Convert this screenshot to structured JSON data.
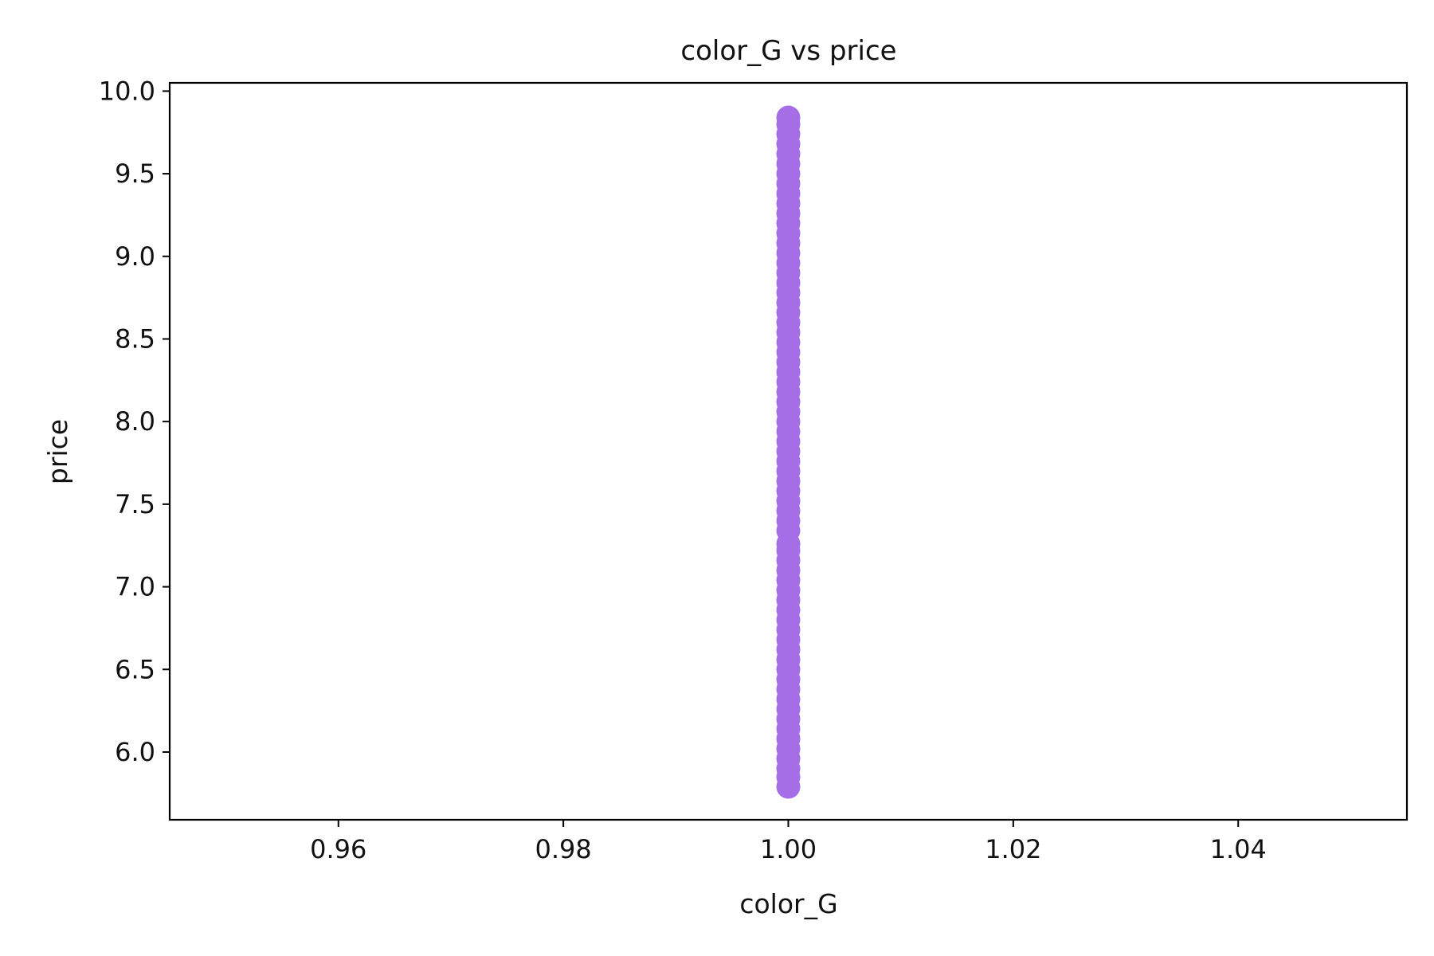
{
  "chart_data": {
    "type": "scatter",
    "title": "color_G vs price",
    "xlabel": "color_G",
    "ylabel": "price",
    "xlim": [
      0.945,
      1.055
    ],
    "ylim": [
      5.59,
      10.05
    ],
    "xticks": [
      0.96,
      0.98,
      1.0,
      1.02,
      1.04
    ],
    "xtick_labels": [
      "0.96",
      "0.98",
      "1.00",
      "1.02",
      "1.04"
    ],
    "yticks": [
      6.0,
      6.5,
      7.0,
      7.5,
      8.0,
      8.5,
      9.0,
      9.5,
      10.0
    ],
    "ytick_labels": [
      "6.0",
      "6.5",
      "7.0",
      "7.5",
      "8.0",
      "8.5",
      "9.0",
      "9.5",
      "10.0"
    ],
    "grid": false,
    "legend": "none",
    "series": [
      {
        "color": "#a56de6",
        "points": [
          {
            "x": 1.0,
            "y": 5.79
          },
          {
            "x": 1.0,
            "y": 5.85
          },
          {
            "x": 1.0,
            "y": 5.9
          },
          {
            "x": 1.0,
            "y": 5.96
          },
          {
            "x": 1.0,
            "y": 6.02
          },
          {
            "x": 1.0,
            "y": 6.08
          },
          {
            "x": 1.0,
            "y": 6.14
          },
          {
            "x": 1.0,
            "y": 6.2
          },
          {
            "x": 1.0,
            "y": 6.26
          },
          {
            "x": 1.0,
            "y": 6.32
          },
          {
            "x": 1.0,
            "y": 6.38
          },
          {
            "x": 1.0,
            "y": 6.44
          },
          {
            "x": 1.0,
            "y": 6.5
          },
          {
            "x": 1.0,
            "y": 6.56
          },
          {
            "x": 1.0,
            "y": 6.62
          },
          {
            "x": 1.0,
            "y": 6.68
          },
          {
            "x": 1.0,
            "y": 6.74
          },
          {
            "x": 1.0,
            "y": 6.8
          },
          {
            "x": 1.0,
            "y": 6.86
          },
          {
            "x": 1.0,
            "y": 6.92
          },
          {
            "x": 1.0,
            "y": 6.98
          },
          {
            "x": 1.0,
            "y": 7.04
          },
          {
            "x": 1.0,
            "y": 7.1
          },
          {
            "x": 1.0,
            "y": 7.16
          },
          {
            "x": 1.0,
            "y": 7.22
          },
          {
            "x": 1.0,
            "y": 7.26
          },
          {
            "x": 1.0,
            "y": 7.34
          },
          {
            "x": 1.0,
            "y": 7.4
          },
          {
            "x": 1.0,
            "y": 7.46
          },
          {
            "x": 1.0,
            "y": 7.52
          },
          {
            "x": 1.0,
            "y": 7.58
          },
          {
            "x": 1.0,
            "y": 7.64
          },
          {
            "x": 1.0,
            "y": 7.7
          },
          {
            "x": 1.0,
            "y": 7.76
          },
          {
            "x": 1.0,
            "y": 7.82
          },
          {
            "x": 1.0,
            "y": 7.88
          },
          {
            "x": 1.0,
            "y": 7.94
          },
          {
            "x": 1.0,
            "y": 8.0
          },
          {
            "x": 1.0,
            "y": 8.06
          },
          {
            "x": 1.0,
            "y": 8.12
          },
          {
            "x": 1.0,
            "y": 8.18
          },
          {
            "x": 1.0,
            "y": 8.24
          },
          {
            "x": 1.0,
            "y": 8.3
          },
          {
            "x": 1.0,
            "y": 8.36
          },
          {
            "x": 1.0,
            "y": 8.42
          },
          {
            "x": 1.0,
            "y": 8.48
          },
          {
            "x": 1.0,
            "y": 8.54
          },
          {
            "x": 1.0,
            "y": 8.6
          },
          {
            "x": 1.0,
            "y": 8.66
          },
          {
            "x": 1.0,
            "y": 8.72
          },
          {
            "x": 1.0,
            "y": 8.78
          },
          {
            "x": 1.0,
            "y": 8.84
          },
          {
            "x": 1.0,
            "y": 8.9
          },
          {
            "x": 1.0,
            "y": 8.96
          },
          {
            "x": 1.0,
            "y": 9.02
          },
          {
            "x": 1.0,
            "y": 9.08
          },
          {
            "x": 1.0,
            "y": 9.14
          },
          {
            "x": 1.0,
            "y": 9.2
          },
          {
            "x": 1.0,
            "y": 9.26
          },
          {
            "x": 1.0,
            "y": 9.32
          },
          {
            "x": 1.0,
            "y": 9.38
          },
          {
            "x": 1.0,
            "y": 9.44
          },
          {
            "x": 1.0,
            "y": 9.5
          },
          {
            "x": 1.0,
            "y": 9.56
          },
          {
            "x": 1.0,
            "y": 9.62
          },
          {
            "x": 1.0,
            "y": 9.68
          },
          {
            "x": 1.0,
            "y": 9.74
          },
          {
            "x": 1.0,
            "y": 9.8
          },
          {
            "x": 1.0,
            "y": 9.84
          }
        ]
      }
    ]
  }
}
